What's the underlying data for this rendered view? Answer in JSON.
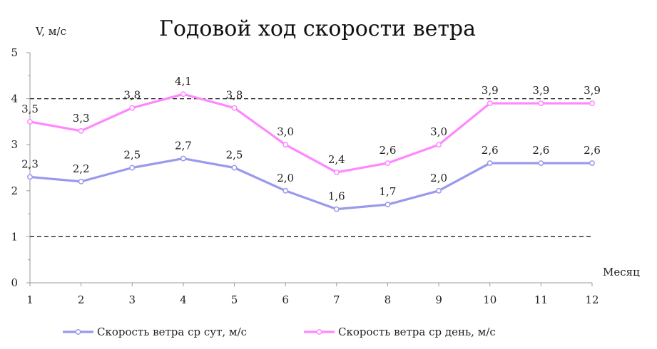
{
  "chart_data": {
    "type": "line",
    "title": "Годовой ход скорости ветра",
    "ylabel": "V, м/с",
    "xlabel": "Месяц",
    "categories": [
      "1",
      "2",
      "3",
      "4",
      "5",
      "6",
      "7",
      "8",
      "9",
      "10",
      "11",
      "12"
    ],
    "ylim": [
      0,
      5
    ],
    "yticks": [
      "0",
      "1",
      "2",
      "3",
      "4",
      "5"
    ],
    "series": [
      {
        "name": "Скорость ветра ср сут, м/с",
        "color": "#9999ee",
        "values": [
          2.3,
          2.2,
          2.5,
          2.7,
          2.5,
          2.0,
          1.6,
          1.7,
          2.0,
          2.6,
          2.6,
          2.6
        ],
        "labels": [
          "2,3",
          "2,2",
          "2,5",
          "2,7",
          "2,5",
          "2,0",
          "1,6",
          "1,7",
          "2,0",
          "2,6",
          "2,6",
          "2,6"
        ]
      },
      {
        "name": "Скорость ветра ср день, м/с",
        "color": "#ff88ff",
        "values": [
          3.5,
          3.3,
          3.8,
          4.1,
          3.8,
          3.0,
          2.4,
          2.6,
          3.0,
          3.9,
          3.9,
          3.9
        ],
        "labels": [
          "3,5",
          "3,3",
          "3,8",
          "4,1",
          "3,8",
          "3,0",
          "2,4",
          "2,6",
          "3,0",
          "3,9",
          "3,9",
          "3,9"
        ]
      }
    ],
    "reference_lines": [
      4,
      1
    ],
    "grid": false,
    "legend_position": "bottom"
  }
}
